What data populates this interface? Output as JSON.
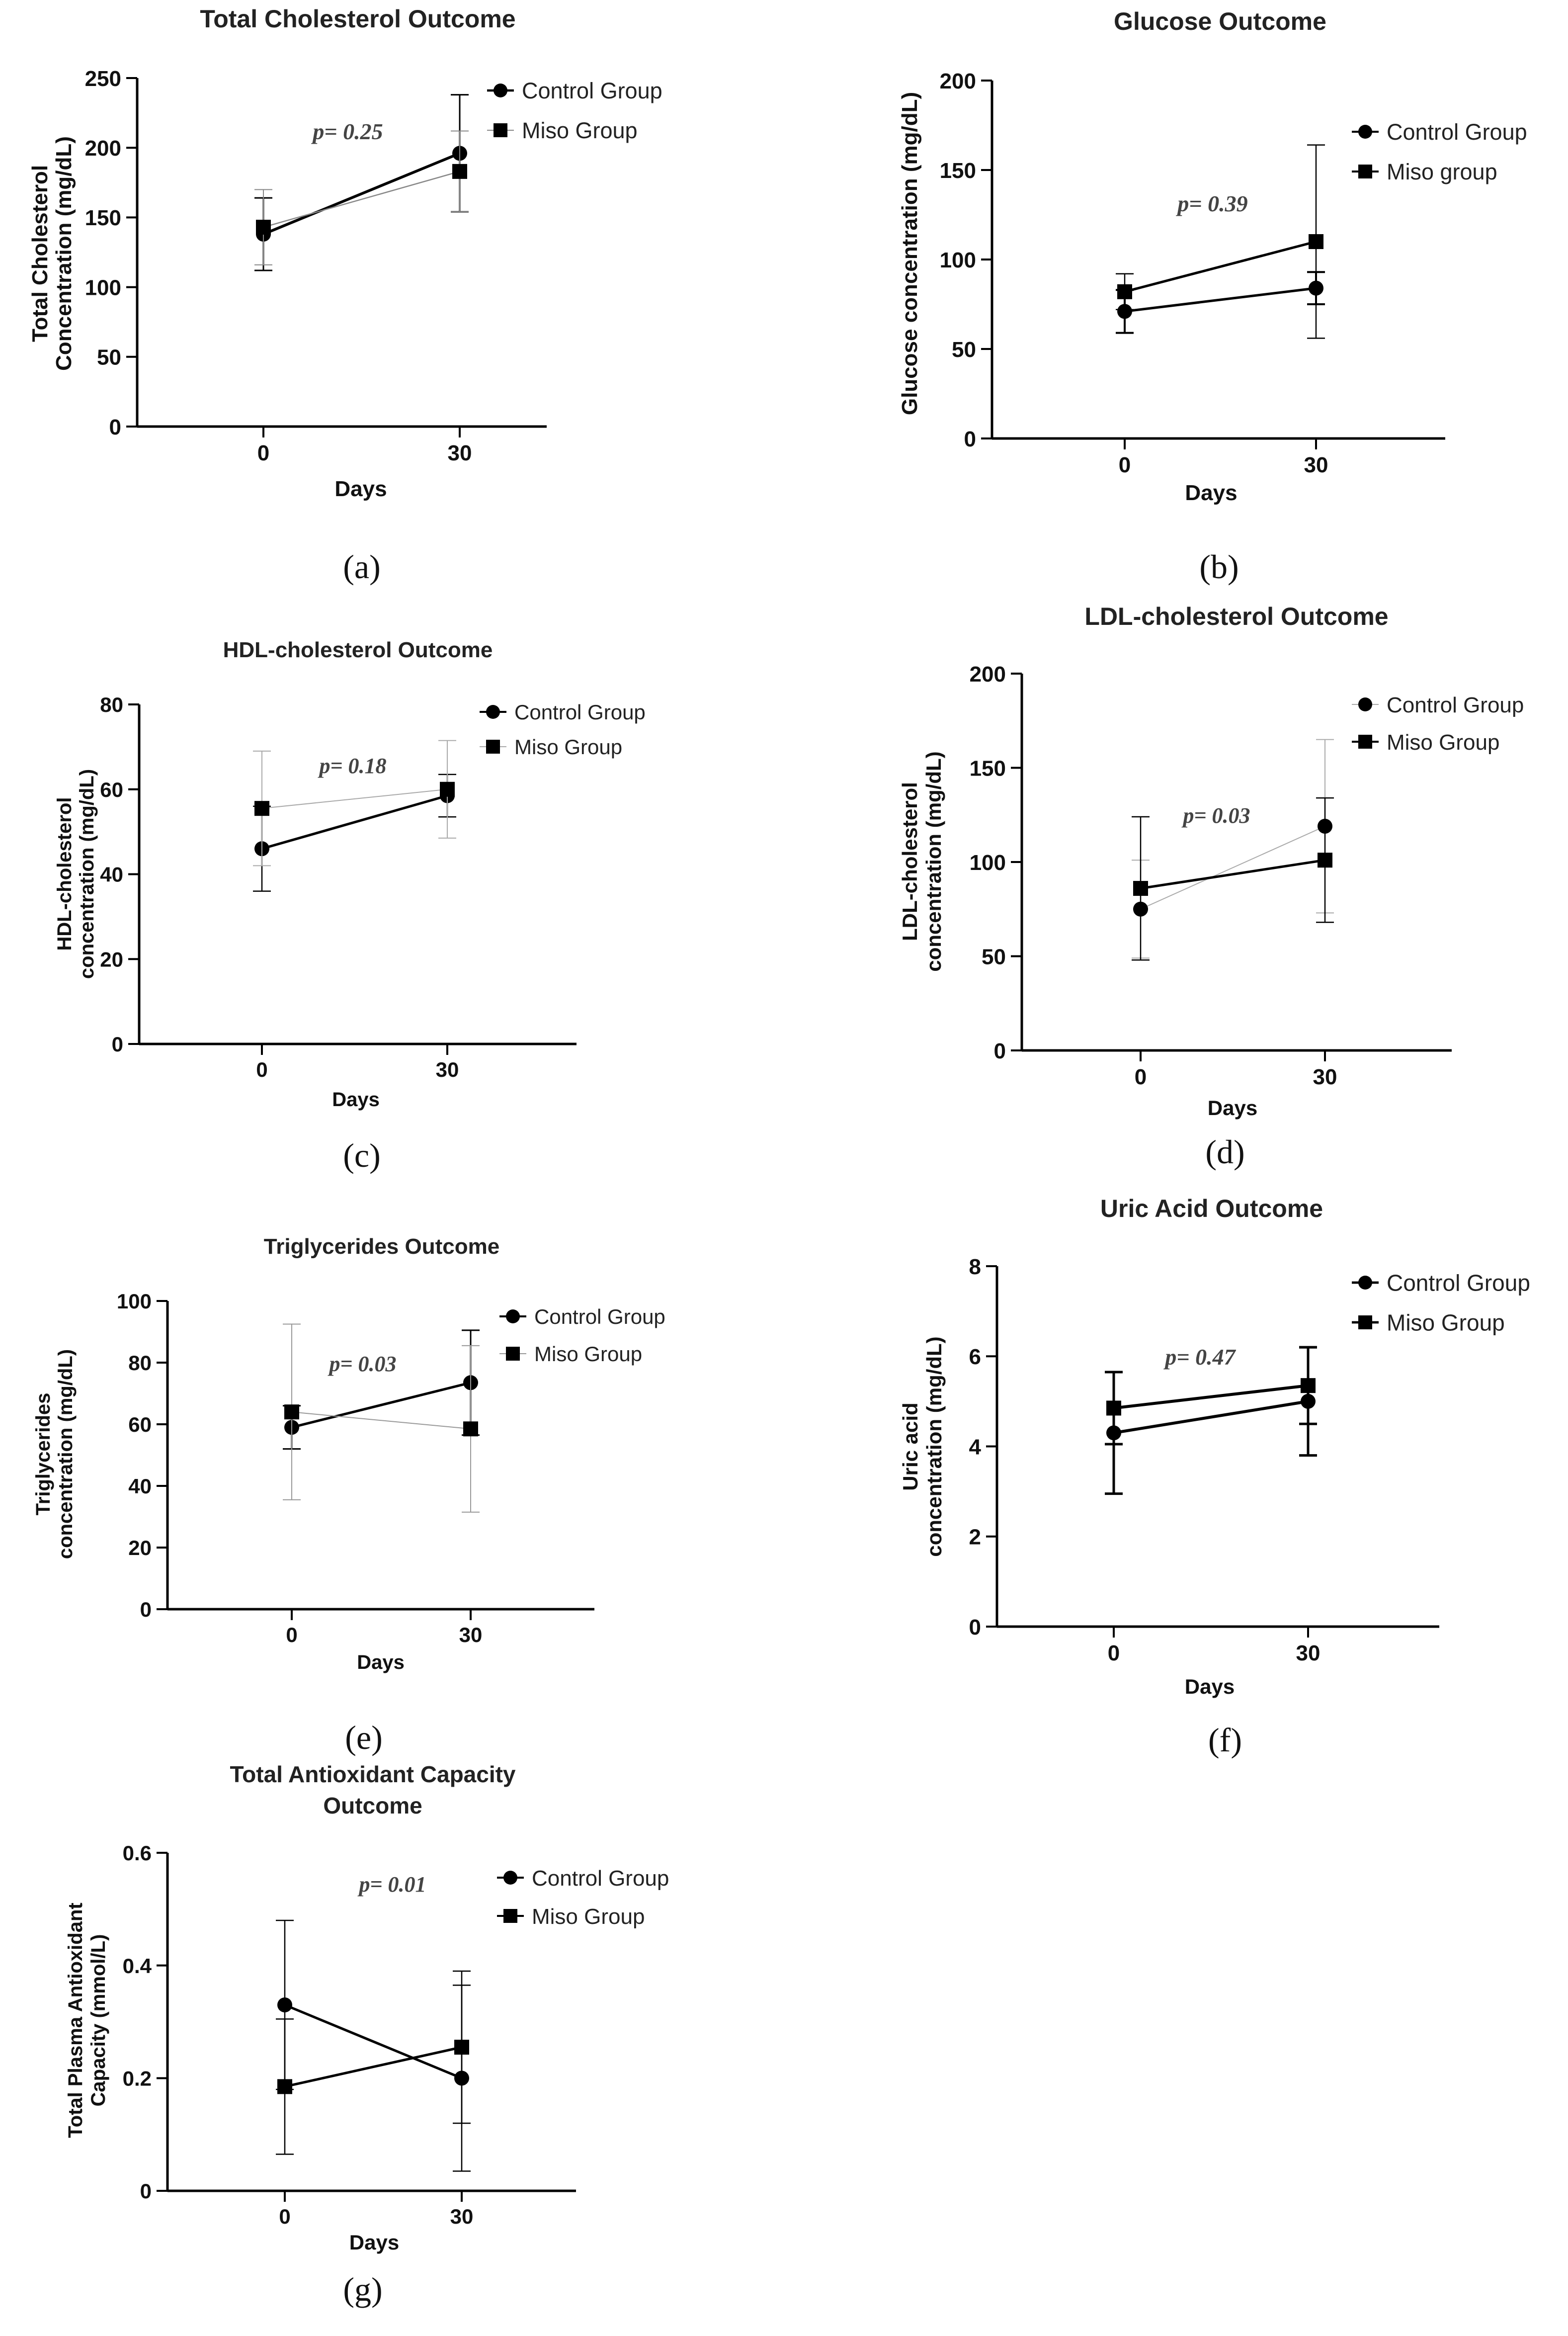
{
  "chart_data": [
    {
      "type": "line",
      "panel_label": "(a)",
      "title": [
        "Total Cholesterol Outcome"
      ],
      "xlabel": "Days",
      "ylabel": [
        "Total Cholesterol",
        "Concentration (mg/dL)"
      ],
      "categories": [
        "0",
        "30"
      ],
      "ylim": [
        0,
        250
      ],
      "yticks": [
        0,
        50,
        100,
        150,
        200,
        250
      ],
      "annotation": "p= 0.25",
      "series": [
        {
          "name": "Control Group",
          "marker": "circle",
          "values": [
            138,
            196
          ],
          "errors": [
            26,
            42
          ]
        },
        {
          "name": "Miso Group",
          "marker": "square",
          "values": [
            143,
            183
          ],
          "errors": [
            27,
            29
          ]
        }
      ]
    },
    {
      "type": "line",
      "panel_label": "(b)",
      "title": [
        "Glucose Outcome"
      ],
      "xlabel": "Days",
      "ylabel": [
        "Glucose concentration (mg/dL)"
      ],
      "categories": [
        "0",
        "30"
      ],
      "ylim": [
        0,
        200
      ],
      "yticks": [
        0,
        50,
        100,
        150,
        200
      ],
      "annotation": "p= 0.39",
      "series": [
        {
          "name": "Control Group",
          "marker": "circle",
          "values": [
            71,
            84
          ],
          "errors": [
            12,
            9
          ]
        },
        {
          "name": "Miso group",
          "marker": "square",
          "values": [
            82,
            110
          ],
          "errors": [
            10,
            54
          ]
        }
      ]
    },
    {
      "type": "line",
      "panel_label": "(c)",
      "title": [
        "HDL-cholesterol Outcome"
      ],
      "xlabel": "Days",
      "ylabel": [
        "HDL-cholesterol",
        "concentration (mg/dL)"
      ],
      "categories": [
        "0",
        "30"
      ],
      "ylim": [
        0,
        80
      ],
      "yticks": [
        0,
        20,
        40,
        60,
        80
      ],
      "annotation": "p= 0.18",
      "series": [
        {
          "name": "Control Group",
          "marker": "circle",
          "values": [
            46,
            58.5
          ],
          "errors": [
            10,
            5
          ]
        },
        {
          "name": "Miso Group",
          "marker": "square",
          "values": [
            55.5,
            60
          ],
          "errors": [
            13.5,
            11.5
          ]
        }
      ]
    },
    {
      "type": "line",
      "panel_label": "(d)",
      "title": [
        "LDL-cholesterol Outcome"
      ],
      "xlabel": "Days",
      "ylabel": [
        "LDL-cholesterol",
        "concentration (mg/dL)"
      ],
      "categories": [
        "0",
        "30"
      ],
      "ylim": [
        0,
        200
      ],
      "yticks": [
        0,
        50,
        100,
        150,
        200
      ],
      "annotation": "p= 0.03",
      "series": [
        {
          "name": "Control Group",
          "marker": "circle",
          "values": [
            75,
            119
          ],
          "errors": [
            26,
            46
          ]
        },
        {
          "name": "Miso Group",
          "marker": "square",
          "values": [
            86,
            101
          ],
          "errors": [
            38,
            33
          ]
        }
      ]
    },
    {
      "type": "line",
      "panel_label": "(e)",
      "title": [
        "Triglycerides Outcome"
      ],
      "xlabel": "Days",
      "ylabel": [
        "Triglycerides",
        "concentration (mg/dL)"
      ],
      "categories": [
        "0",
        "30"
      ],
      "ylim": [
        0,
        100
      ],
      "yticks": [
        0,
        20,
        40,
        60,
        80,
        100
      ],
      "annotation": "p= 0.03",
      "series": [
        {
          "name": "Control Group",
          "marker": "circle",
          "values": [
            59,
            73.5
          ],
          "errors": [
            7,
            17
          ]
        },
        {
          "name": "Miso Group",
          "marker": "square",
          "values": [
            64,
            58.5
          ],
          "errors": [
            28.5,
            27
          ]
        }
      ]
    },
    {
      "type": "line",
      "panel_label": "(f)",
      "title": [
        "Uric Acid Outcome"
      ],
      "xlabel": "Days",
      "ylabel": [
        "Uric acid",
        "concentration (mg/dL)"
      ],
      "categories": [
        "0",
        "30"
      ],
      "ylim": [
        0,
        8
      ],
      "yticks": [
        0,
        2,
        4,
        6,
        8
      ],
      "annotation": "p= 0.47",
      "series": [
        {
          "name": "Control Group",
          "marker": "circle",
          "values": [
            4.3,
            5.0
          ],
          "errors": [
            1.35,
            1.2
          ]
        },
        {
          "name": "Miso Group",
          "marker": "square",
          "values": [
            4.85,
            5.35
          ],
          "errors": [
            0.8,
            0.85
          ]
        }
      ]
    },
    {
      "type": "line",
      "panel_label": "(g)",
      "title": [
        "Total Antioxidant Capacity",
        "Outcome"
      ],
      "xlabel": "Days",
      "ylabel": [
        "Total Plasma Antioxidant",
        "Capacity (mmol/L)"
      ],
      "categories": [
        "0",
        "30"
      ],
      "ylim": [
        0,
        0.6
      ],
      "yticks": [
        0.0,
        0.2,
        0.4,
        0.6
      ],
      "annotation": "p= 0.01",
      "series": [
        {
          "name": "Control Group",
          "marker": "circle",
          "values": [
            0.33,
            0.2
          ],
          "errors": [
            0.15,
            0.165
          ]
        },
        {
          "name": "Miso Group",
          "marker": "square",
          "values": [
            0.185,
            0.255
          ],
          "errors": [
            0.12,
            0.135
          ]
        }
      ]
    }
  ]
}
